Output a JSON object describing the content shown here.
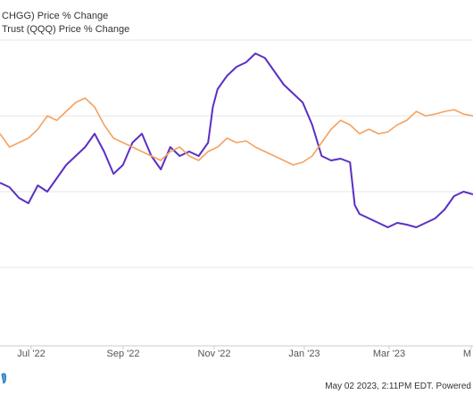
{
  "chart_data": {
    "type": "line",
    "legend": [
      {
        "label": "CHGG) Price % Change",
        "color": "#5b2fc4"
      },
      {
        "label": "Trust (QQQ) Price % Change",
        "color": "#f4a261"
      }
    ],
    "x_ticks": [
      "Jul '22",
      "Sep '22",
      "Nov '22",
      "Jan '23",
      "Mar '23",
      "M"
    ],
    "y_gridlines": 4,
    "series": [
      {
        "name": "CHGG) Price % Change",
        "color": "#5b2fc4",
        "x": [
          0,
          0.02,
          0.04,
          0.06,
          0.08,
          0.1,
          0.12,
          0.14,
          0.16,
          0.18,
          0.2,
          0.22,
          0.24,
          0.26,
          0.28,
          0.3,
          0.32,
          0.34,
          0.36,
          0.38,
          0.4,
          0.42,
          0.44,
          0.45,
          0.46,
          0.48,
          0.5,
          0.52,
          0.54,
          0.56,
          0.58,
          0.6,
          0.62,
          0.64,
          0.66,
          0.68,
          0.7,
          0.72,
          0.74,
          0.75,
          0.76,
          0.78,
          0.8,
          0.82,
          0.84,
          0.86,
          0.88,
          0.9,
          0.92,
          0.94,
          0.96,
          0.98,
          1.0
        ],
        "y": [
          205,
          210,
          222,
          228,
          208,
          215,
          200,
          185,
          175,
          165,
          150,
          170,
          195,
          185,
          160,
          150,
          175,
          190,
          165,
          175,
          170,
          175,
          160,
          120,
          100,
          85,
          75,
          70,
          60,
          65,
          80,
          95,
          105,
          115,
          140,
          175,
          180,
          178,
          182,
          230,
          240,
          245,
          250,
          255,
          250,
          252,
          255,
          250,
          245,
          235,
          220,
          215,
          218
        ]
      },
      {
        "name": "Trust (QQQ) Price % Change",
        "color": "#f4a261",
        "x": [
          0,
          0.02,
          0.04,
          0.06,
          0.08,
          0.1,
          0.12,
          0.14,
          0.16,
          0.18,
          0.2,
          0.22,
          0.24,
          0.26,
          0.28,
          0.3,
          0.32,
          0.34,
          0.36,
          0.38,
          0.4,
          0.42,
          0.44,
          0.46,
          0.48,
          0.5,
          0.52,
          0.54,
          0.56,
          0.58,
          0.6,
          0.62,
          0.64,
          0.66,
          0.68,
          0.7,
          0.72,
          0.74,
          0.76,
          0.78,
          0.8,
          0.82,
          0.84,
          0.86,
          0.88,
          0.9,
          0.92,
          0.94,
          0.96,
          0.98,
          1.0
        ],
        "y": [
          150,
          165,
          160,
          155,
          145,
          130,
          135,
          125,
          115,
          110,
          120,
          140,
          155,
          160,
          165,
          170,
          175,
          180,
          170,
          165,
          175,
          180,
          170,
          165,
          155,
          160,
          158,
          165,
          170,
          175,
          180,
          185,
          182,
          175,
          160,
          145,
          135,
          140,
          150,
          145,
          150,
          148,
          140,
          135,
          125,
          130,
          128,
          125,
          123,
          128,
          130
        ]
      }
    ],
    "footer": "May 02 2023, 2:11PM EDT. Powered"
  }
}
